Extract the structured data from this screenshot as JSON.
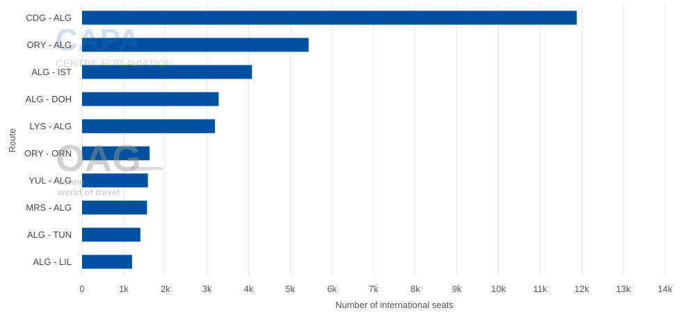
{
  "chart_data": {
    "type": "bar",
    "orientation": "horizontal",
    "categories": [
      "CDG - ALG",
      "ORY - ALG",
      "ALG - IST",
      "ALG - DOH",
      "LYS - ALG",
      "ORY - ORN",
      "YUL - ALG",
      "MRS - ALG",
      "ALG - TUN",
      "ALG - LIL"
    ],
    "values": [
      11880,
      5440,
      4080,
      3280,
      3190,
      1620,
      1580,
      1560,
      1400,
      1200
    ],
    "xlabel": "Number of international seats",
    "ylabel": "Route",
    "xlim": [
      0,
      14000
    ],
    "xticks": [
      0,
      1000,
      2000,
      3000,
      4000,
      5000,
      6000,
      7000,
      8000,
      9000,
      10000,
      11000,
      12000,
      13000,
      14000
    ],
    "xtick_labels": [
      "0",
      "1k",
      "2k",
      "3k",
      "4k",
      "5k",
      "6k",
      "7k",
      "8k",
      "9k",
      "10k",
      "11k",
      "12k",
      "13k",
      "14k"
    ],
    "grid": "vertical",
    "bar_color": "#0050a0",
    "grid_color": "#e6e6e6"
  },
  "watermarks": {
    "capa_logo": "CAPA",
    "capa_tagline": "CENTRE FOR AVIATION",
    "oag_logo": "OAG",
    "oag_tagline_1": "conne",
    "oag_tagline_2": "world of travel"
  }
}
